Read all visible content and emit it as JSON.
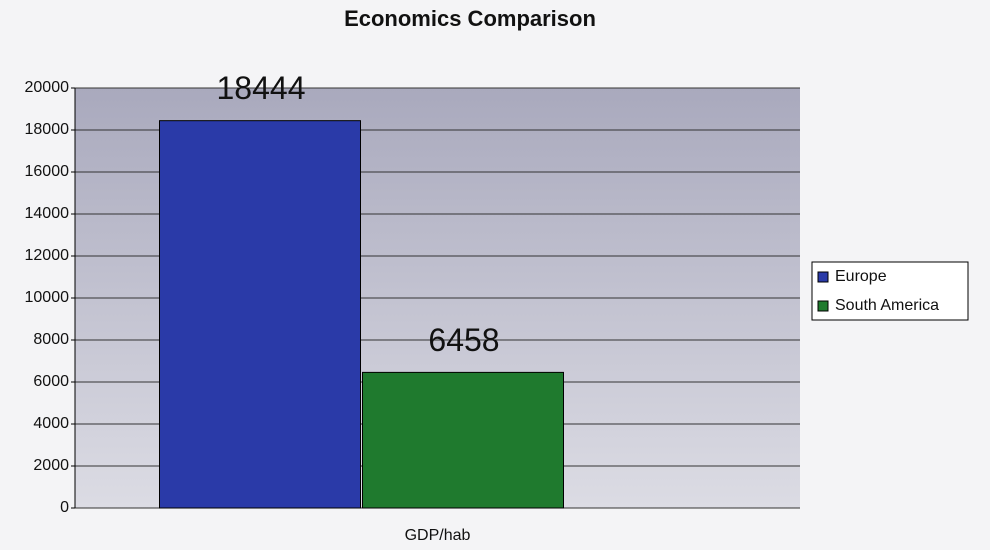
{
  "chart_data": {
    "type": "bar",
    "title": "Economics Comparison",
    "categories": [
      "GDP/hab"
    ],
    "series": [
      {
        "name": "Europe",
        "color": "#2a3aa8",
        "values": [
          18444
        ]
      },
      {
        "name": "South America",
        "color": "#1f7a2e",
        "values": [
          6458
        ]
      }
    ],
    "ylim": [
      0,
      20000
    ],
    "yticks": [
      0,
      2000,
      4000,
      6000,
      8000,
      10000,
      12000,
      14000,
      16000,
      18000,
      20000
    ],
    "grid": true,
    "legend": "right"
  }
}
